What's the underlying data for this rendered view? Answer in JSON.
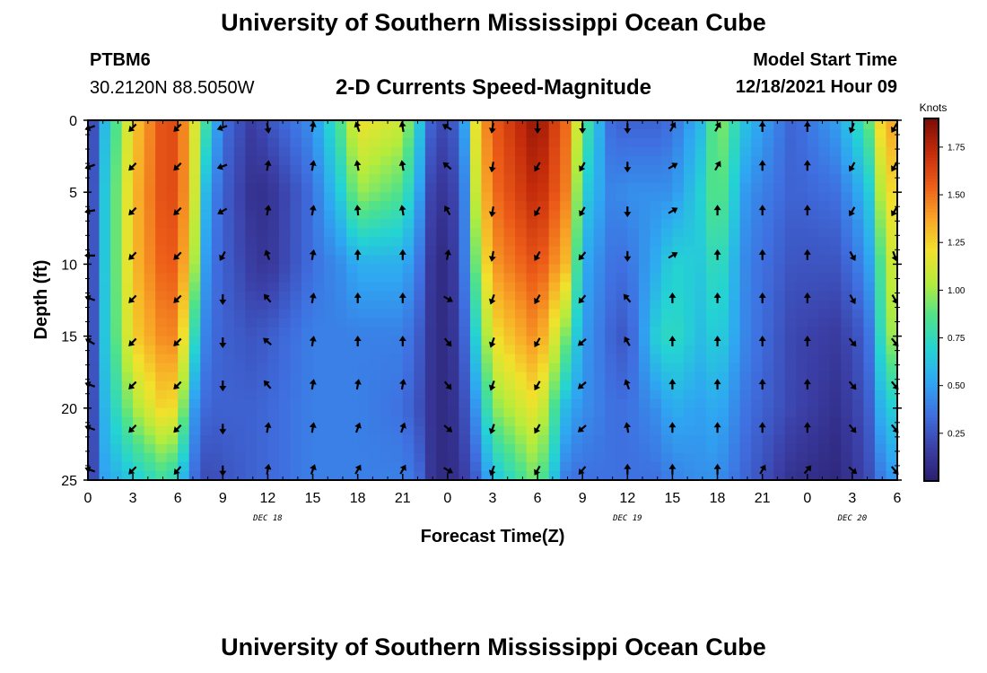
{
  "header": {
    "title": "University of Southern Mississippi Ocean Cube",
    "station_id": "PTBM6",
    "coordinates": "30.2120N  88.5050W",
    "subtitle": "2-D Currents Speed-Magnitude",
    "model_start_label": "Model Start Time",
    "model_start_value": "12/18/2021 Hour 09"
  },
  "footer": {
    "title": "University of Southern Mississippi Ocean Cube"
  },
  "chart_data": {
    "type": "heatmap",
    "title": "2-D Currents Speed-Magnitude",
    "xlabel": "Forecast Time(Z)",
    "ylabel": "Depth (ft)",
    "x_range_hours": [
      0,
      54
    ],
    "y_range_ft": [
      0,
      25
    ],
    "x_tick_labels": [
      "0",
      "3",
      "6",
      "9",
      "12",
      "15",
      "18",
      "21",
      "0",
      "3",
      "6",
      "9",
      "12",
      "15",
      "18",
      "21",
      "0",
      "3",
      "6"
    ],
    "y_tick_labels": [
      "0",
      "5",
      "10",
      "15",
      "20",
      "25"
    ],
    "y_tick_values": [
      0,
      5,
      10,
      15,
      20,
      25
    ],
    "date_labels": [
      {
        "text": "DEC 18",
        "hour": 12
      },
      {
        "text": "DEC 19",
        "hour": 36
      },
      {
        "text": "DEC 20",
        "hour": 51
      }
    ],
    "colorbar": {
      "title": "Knots",
      "range": [
        0,
        1.9
      ],
      "tick_labels": [
        "0.25",
        "0.50",
        "0.75",
        "1.00",
        "1.25",
        "1.50",
        "1.75"
      ],
      "tick_values": [
        0.25,
        0.5,
        0.75,
        1.0,
        1.25,
        1.5,
        1.75
      ],
      "colors": [
        "#2a1f6e",
        "#3b3fa6",
        "#3f6fe0",
        "#2fa6f2",
        "#24d3d3",
        "#4fe28a",
        "#b5ec3c",
        "#f2e12c",
        "#f8a326",
        "#ec5a18",
        "#c22a0a",
        "#7a0c06"
      ]
    },
    "speed_keyframes": [
      {
        "hour": 0,
        "profile": [
          0.05,
          0.05,
          0.05,
          0.05,
          0.05,
          0.05
        ]
      },
      {
        "hour": 1,
        "profile": [
          0.55,
          0.6,
          0.6,
          0.6,
          0.55,
          0.5
        ]
      },
      {
        "hour": 3,
        "profile": [
          1.25,
          1.3,
          1.3,
          1.25,
          1.0,
          0.65
        ]
      },
      {
        "hour": 5,
        "profile": [
          1.6,
          1.6,
          1.55,
          1.45,
          1.25,
          0.8
        ]
      },
      {
        "hour": 6,
        "profile": [
          1.6,
          1.6,
          1.55,
          1.45,
          1.2,
          0.7
        ]
      },
      {
        "hour": 7,
        "profile": [
          1.2,
          1.2,
          1.1,
          0.8,
          0.5,
          0.35
        ]
      },
      {
        "hour": 8,
        "profile": [
          0.75,
          0.5,
          0.4,
          0.35,
          0.3,
          0.2
        ]
      },
      {
        "hour": 9,
        "profile": [
          0.35,
          0.3,
          0.3,
          0.3,
          0.3,
          0.25
        ]
      },
      {
        "hour": 11,
        "profile": [
          0.15,
          0.1,
          0.15,
          0.25,
          0.3,
          0.3
        ]
      },
      {
        "hour": 12,
        "profile": [
          0.25,
          0.1,
          0.12,
          0.28,
          0.32,
          0.32
        ]
      },
      {
        "hour": 15,
        "profile": [
          0.45,
          0.35,
          0.35,
          0.4,
          0.4,
          0.4
        ]
      },
      {
        "hour": 17,
        "profile": [
          0.9,
          0.7,
          0.45,
          0.4,
          0.4,
          0.4
        ]
      },
      {
        "hour": 18,
        "profile": [
          1.2,
          1.0,
          0.55,
          0.4,
          0.4,
          0.4
        ]
      },
      {
        "hour": 21,
        "profile": [
          1.1,
          0.85,
          0.55,
          0.4,
          0.35,
          0.4
        ]
      },
      {
        "hour": 22,
        "profile": [
          0.7,
          0.55,
          0.4,
          0.3,
          0.25,
          0.35
        ]
      },
      {
        "hour": 23,
        "profile": [
          0.25,
          0.15,
          0.1,
          0.1,
          0.1,
          0.1
        ]
      },
      {
        "hour": 24,
        "profile": [
          0.2,
          0.12,
          0.05,
          0.05,
          0.05,
          0.05
        ]
      },
      {
        "hour": 25,
        "profile": [
          0.4,
          0.3,
          0.3,
          0.25,
          0.2,
          0.15
        ]
      },
      {
        "hour": 26,
        "profile": [
          1.3,
          1.2,
          1.0,
          0.75,
          0.5,
          0.3
        ]
      },
      {
        "hour": 27,
        "profile": [
          1.55,
          1.5,
          1.4,
          1.2,
          0.95,
          0.6
        ]
      },
      {
        "hour": 30,
        "profile": [
          1.85,
          1.75,
          1.6,
          1.45,
          1.2,
          0.95
        ]
      },
      {
        "hour": 32,
        "profile": [
          1.5,
          1.45,
          1.3,
          0.9,
          0.55,
          0.35
        ]
      },
      {
        "hour": 33,
        "profile": [
          0.9,
          0.7,
          0.55,
          0.5,
          0.45,
          0.35
        ]
      },
      {
        "hour": 35,
        "profile": [
          0.3,
          0.4,
          0.35,
          0.3,
          0.35,
          0.35
        ]
      },
      {
        "hour": 36,
        "profile": [
          0.3,
          0.45,
          0.35,
          0.25,
          0.35,
          0.35
        ]
      },
      {
        "hour": 38,
        "profile": [
          0.3,
          0.45,
          0.55,
          0.7,
          0.45,
          0.35
        ]
      },
      {
        "hour": 39,
        "profile": [
          0.35,
          0.45,
          0.7,
          0.75,
          0.55,
          0.4
        ]
      },
      {
        "hour": 41,
        "profile": [
          0.6,
          0.7,
          0.65,
          0.6,
          0.5,
          0.45
        ]
      },
      {
        "hour": 42,
        "profile": [
          1.0,
          0.95,
          0.8,
          0.7,
          0.55,
          0.45
        ]
      },
      {
        "hour": 44,
        "profile": [
          0.6,
          0.45,
          0.4,
          0.4,
          0.35,
          0.3
        ]
      },
      {
        "hour": 47,
        "profile": [
          0.3,
          0.3,
          0.25,
          0.2,
          0.2,
          0.1
        ]
      },
      {
        "hour": 50,
        "profile": [
          0.5,
          0.35,
          0.25,
          0.15,
          0.1,
          0.05
        ]
      },
      {
        "hour": 52,
        "profile": [
          0.85,
          0.6,
          0.45,
          0.3,
          0.25,
          0.2
        ]
      },
      {
        "hour": 53,
        "profile": [
          1.3,
          1.1,
          0.9,
          0.8,
          0.6,
          0.4
        ]
      },
      {
        "hour": 54,
        "profile": [
          1.4,
          1.3,
          1.2,
          1.1,
          0.7,
          0.5
        ]
      }
    ],
    "vector_depths": [
      0.5,
      3.2,
      6.3,
      9.4,
      12.4,
      15.4,
      18.4,
      21.4,
      24.3
    ],
    "vector_hours": [
      0,
      3,
      6,
      9,
      12,
      15,
      18,
      21,
      24,
      27,
      30,
      33,
      36,
      39,
      42,
      45,
      48,
      51,
      54
    ],
    "vector_direction_deg_by_hour": [
      [
        250,
        250,
        260,
        270,
        290,
        300,
        290,
        290,
        290
      ],
      [
        225,
        225,
        225,
        225,
        225,
        225,
        225,
        225,
        225
      ],
      [
        225,
        225,
        225,
        225,
        225,
        225,
        225,
        225,
        220
      ],
      [
        250,
        250,
        240,
        210,
        180,
        180,
        180,
        180,
        180
      ],
      [
        170,
        10,
        10,
        340,
        320,
        310,
        320,
        10,
        10
      ],
      [
        10,
        10,
        10,
        10,
        10,
        10,
        10,
        10,
        20
      ],
      [
        340,
        350,
        355,
        0,
        0,
        0,
        10,
        20,
        30
      ],
      [
        350,
        350,
        350,
        0,
        0,
        0,
        10,
        20,
        30
      ],
      [
        300,
        310,
        330,
        10,
        120,
        140,
        140,
        130,
        120
      ],
      [
        190,
        190,
        190,
        190,
        200,
        200,
        200,
        200,
        200
      ],
      [
        180,
        210,
        210,
        210,
        210,
        210,
        210,
        210,
        210
      ],
      [
        180,
        210,
        210,
        220,
        220,
        230,
        230,
        230,
        220
      ],
      [
        180,
        180,
        180,
        180,
        320,
        330,
        340,
        350,
        0
      ],
      [
        30,
        60,
        60,
        60,
        0,
        0,
        0,
        0,
        0
      ],
      [
        30,
        30,
        0,
        0,
        0,
        0,
        0,
        0,
        0
      ],
      [
        0,
        0,
        0,
        0,
        0,
        0,
        0,
        0,
        30
      ],
      [
        0,
        0,
        0,
        0,
        0,
        0,
        0,
        0,
        40
      ],
      [
        200,
        210,
        210,
        150,
        150,
        140,
        140,
        140,
        130
      ],
      [
        210,
        210,
        210,
        160,
        150,
        140,
        140,
        140,
        140
      ]
    ]
  }
}
